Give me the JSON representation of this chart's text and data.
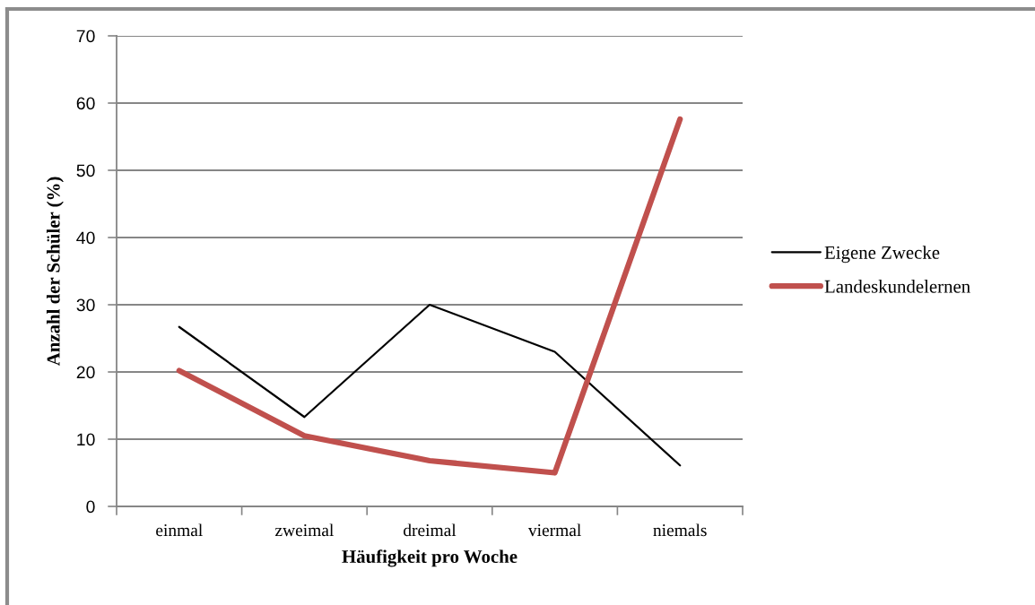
{
  "chart_data": {
    "type": "line",
    "xlabel": "Häufigkeit pro Woche",
    "ylabel": "Anzahl der Schüler (%)",
    "categories": [
      "einmal",
      "zweimal",
      "dreimal",
      "viermal",
      "niemals"
    ],
    "series": [
      {
        "name": "Eigene Zwecke",
        "color": "#000000",
        "values": [
          26.7,
          13.3,
          30,
          23,
          6.1
        ]
      },
      {
        "name": "Landeskundelernen",
        "color": "#c0504d",
        "values": [
          20.2,
          10.5,
          6.8,
          5,
          57.6
        ]
      }
    ],
    "ylim": [
      0,
      70
    ],
    "yticks": [
      0,
      10,
      20,
      30,
      40,
      50,
      60,
      70
    ],
    "grid": "y",
    "legend": "right"
  }
}
